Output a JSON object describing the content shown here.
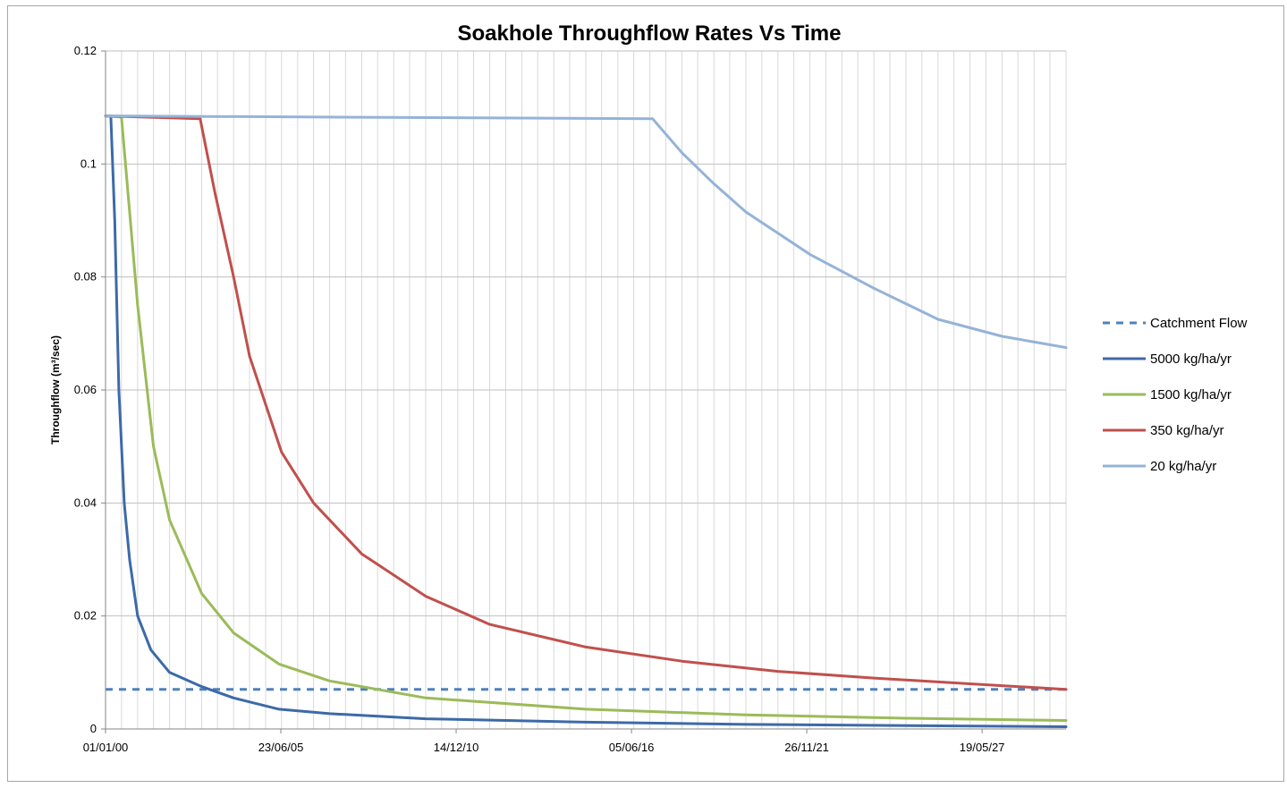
{
  "chart_data": {
    "type": "line",
    "title": "Soakhole Throughflow Rates Vs Time",
    "xlabel": "",
    "ylabel": "Throughflow (m³/sec)",
    "x_axis": {
      "type": "date",
      "tick_labels": [
        "01/01/00",
        "23/06/05",
        "14/12/10",
        "05/06/16",
        "26/11/21",
        "19/05/27"
      ],
      "range": [
        "2000-01-01",
        "2030-01-01"
      ]
    },
    "y_axis": {
      "range": [
        0,
        0.12
      ],
      "tick_labels": [
        "0",
        "0.02",
        "0.04",
        "0.06",
        "0.08",
        "0.1",
        "0.12"
      ],
      "tick_values": [
        0,
        0.02,
        0.04,
        0.06,
        0.08,
        0.1,
        0.12
      ]
    },
    "grid": true,
    "legend_position": "right",
    "series": [
      {
        "name": "Catchment Flow",
        "color": "#4f81bd",
        "dashed": true,
        "points": [
          [
            "2000-01-01",
            0.007
          ],
          [
            "2030-01-01",
            0.007
          ]
        ]
      },
      {
        "name": "5000 kg/ha/yr",
        "color": "#3c6aa8",
        "dashed": false,
        "points": [
          [
            "2000-01-01",
            0.1085
          ],
          [
            "2000-03-01",
            0.1085
          ],
          [
            "2000-04-15",
            0.09
          ],
          [
            "2000-06-01",
            0.06
          ],
          [
            "2000-08-01",
            0.04
          ],
          [
            "2000-10-01",
            0.03
          ],
          [
            "2001-01-01",
            0.02
          ],
          [
            "2001-06-01",
            0.014
          ],
          [
            "2002-01-01",
            0.01
          ],
          [
            "2003-01-01",
            0.0075
          ],
          [
            "2004-01-01",
            0.0055
          ],
          [
            "2005-06-01",
            0.0035
          ],
          [
            "2007-01-01",
            0.0027
          ],
          [
            "2010-01-01",
            0.0018
          ],
          [
            "2015-01-01",
            0.0012
          ],
          [
            "2020-01-01",
            0.0008
          ],
          [
            "2030-01-01",
            0.0004
          ]
        ]
      },
      {
        "name": "1500 kg/ha/yr",
        "color": "#9bbb59",
        "dashed": false,
        "points": [
          [
            "2000-01-01",
            0.1085
          ],
          [
            "2000-07-01",
            0.1083
          ],
          [
            "2001-01-01",
            0.075
          ],
          [
            "2001-07-01",
            0.05
          ],
          [
            "2002-01-01",
            0.037
          ],
          [
            "2003-01-01",
            0.024
          ],
          [
            "2004-01-01",
            0.017
          ],
          [
            "2005-06-01",
            0.0115
          ],
          [
            "2007-01-01",
            0.0085
          ],
          [
            "2010-01-01",
            0.0055
          ],
          [
            "2015-01-01",
            0.0035
          ],
          [
            "2020-01-01",
            0.0025
          ],
          [
            "2025-01-01",
            0.0019
          ],
          [
            "2030-01-01",
            0.0015
          ]
        ]
      },
      {
        "name": "350 kg/ha/yr",
        "color": "#c0504d",
        "dashed": false,
        "points": [
          [
            "2000-01-01",
            0.1085
          ],
          [
            "2002-12-15",
            0.108
          ],
          [
            "2003-06-01",
            0.095
          ],
          [
            "2004-01-01",
            0.08
          ],
          [
            "2004-07-01",
            0.066
          ],
          [
            "2005-07-01",
            0.049
          ],
          [
            "2006-07-01",
            0.04
          ],
          [
            "2008-01-01",
            0.031
          ],
          [
            "2010-01-01",
            0.0235
          ],
          [
            "2012-01-01",
            0.0185
          ],
          [
            "2015-01-01",
            0.0145
          ],
          [
            "2018-01-01",
            0.012
          ],
          [
            "2021-01-01",
            0.0102
          ],
          [
            "2024-01-01",
            0.009
          ],
          [
            "2027-01-01",
            0.008
          ],
          [
            "2030-01-01",
            0.007
          ]
        ]
      },
      {
        "name": "20 kg/ha/yr",
        "color": "#95b3d7",
        "dashed": false,
        "points": [
          [
            "2000-01-01",
            0.1085
          ],
          [
            "2017-02-01",
            0.108
          ],
          [
            "2018-01-01",
            0.102
          ],
          [
            "2019-01-01",
            0.0965
          ],
          [
            "2020-01-01",
            0.0915
          ],
          [
            "2022-01-01",
            0.084
          ],
          [
            "2024-01-01",
            0.078
          ],
          [
            "2026-01-01",
            0.0725
          ],
          [
            "2028-01-01",
            0.0695
          ],
          [
            "2030-01-01",
            0.0675
          ]
        ]
      }
    ]
  }
}
